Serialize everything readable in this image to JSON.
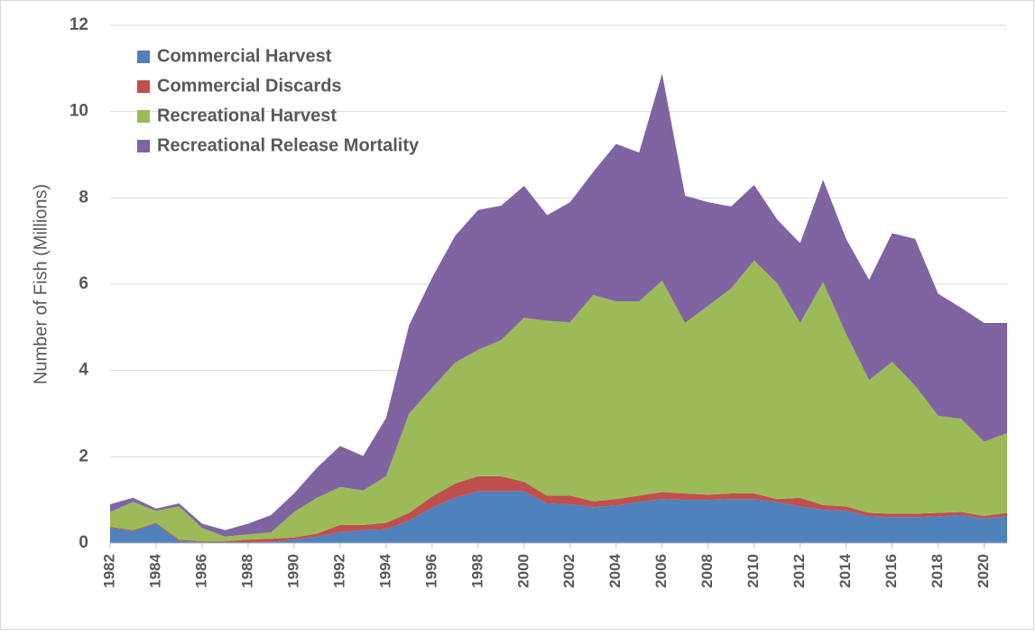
{
  "chart_data": {
    "type": "stacked-area",
    "y_label": "Number of Fish (Millions)",
    "x": [
      1982,
      1983,
      1984,
      1985,
      1986,
      1987,
      1988,
      1989,
      1990,
      1991,
      1992,
      1993,
      1994,
      1995,
      1996,
      1997,
      1998,
      1999,
      2000,
      2001,
      2002,
      2003,
      2004,
      2005,
      2006,
      2007,
      2008,
      2009,
      2010,
      2011,
      2012,
      2013,
      2014,
      2015,
      2016,
      2017,
      2018,
      2019,
      2020,
      2021
    ],
    "xlim": [
      1982,
      2021
    ],
    "xticks": [
      1982,
      1984,
      1986,
      1988,
      1990,
      1992,
      1994,
      1996,
      1998,
      2000,
      2002,
      2004,
      2006,
      2008,
      2010,
      2012,
      2014,
      2016,
      2018,
      2020
    ],
    "ylim": [
      0,
      12
    ],
    "yticks": [
      0,
      2,
      4,
      6,
      8,
      10,
      12
    ],
    "grid": true,
    "legend": "upper-left",
    "series": [
      {
        "name": "Commercial Harvest",
        "color": "#4f81bd",
        "values": [
          0.35,
          0.28,
          0.45,
          0.05,
          0.02,
          0.02,
          0.02,
          0.03,
          0.08,
          0.15,
          0.25,
          0.3,
          0.32,
          0.52,
          0.82,
          1.05,
          1.2,
          1.2,
          1.2,
          0.92,
          0.9,
          0.83,
          0.87,
          0.95,
          1.02,
          1.0,
          1.0,
          1.02,
          1.02,
          0.95,
          0.85,
          0.77,
          0.75,
          0.62,
          0.6,
          0.6,
          0.62,
          0.65,
          0.57,
          0.62
        ]
      },
      {
        "name": "Commercial Discards",
        "color": "#c0504d",
        "values": [
          0.03,
          0.02,
          0.02,
          0.03,
          0.02,
          0.02,
          0.06,
          0.07,
          0.05,
          0.07,
          0.17,
          0.12,
          0.15,
          0.18,
          0.26,
          0.33,
          0.35,
          0.35,
          0.22,
          0.18,
          0.2,
          0.14,
          0.15,
          0.15,
          0.16,
          0.15,
          0.12,
          0.13,
          0.13,
          0.07,
          0.2,
          0.11,
          0.1,
          0.08,
          0.08,
          0.08,
          0.08,
          0.07,
          0.06,
          0.08
        ]
      },
      {
        "name": "Recreational Harvest",
        "color": "#9bbb59",
        "values": [
          0.34,
          0.65,
          0.28,
          0.77,
          0.31,
          0.11,
          0.12,
          0.15,
          0.59,
          0.83,
          0.88,
          0.8,
          1.08,
          2.3,
          2.52,
          2.8,
          2.93,
          3.15,
          3.8,
          4.05,
          4.02,
          4.78,
          4.58,
          4.5,
          4.9,
          3.95,
          4.38,
          4.75,
          5.4,
          5.0,
          4.05,
          5.17,
          4.0,
          3.08,
          3.52,
          2.97,
          2.25,
          2.16,
          1.72,
          1.85
        ]
      },
      {
        "name": "Recreational Release Mortality",
        "color": "#8064a2",
        "values": [
          0.18,
          0.1,
          0.05,
          0.07,
          0.1,
          0.15,
          0.25,
          0.4,
          0.43,
          0.7,
          0.95,
          0.8,
          1.35,
          2.05,
          2.55,
          2.94,
          3.24,
          3.12,
          3.06,
          2.45,
          2.78,
          2.85,
          3.65,
          3.45,
          4.8,
          2.95,
          2.4,
          1.9,
          1.75,
          1.48,
          1.85,
          2.37,
          2.2,
          2.32,
          2.98,
          3.4,
          2.83,
          2.57,
          2.75,
          2.55
        ]
      }
    ]
  }
}
